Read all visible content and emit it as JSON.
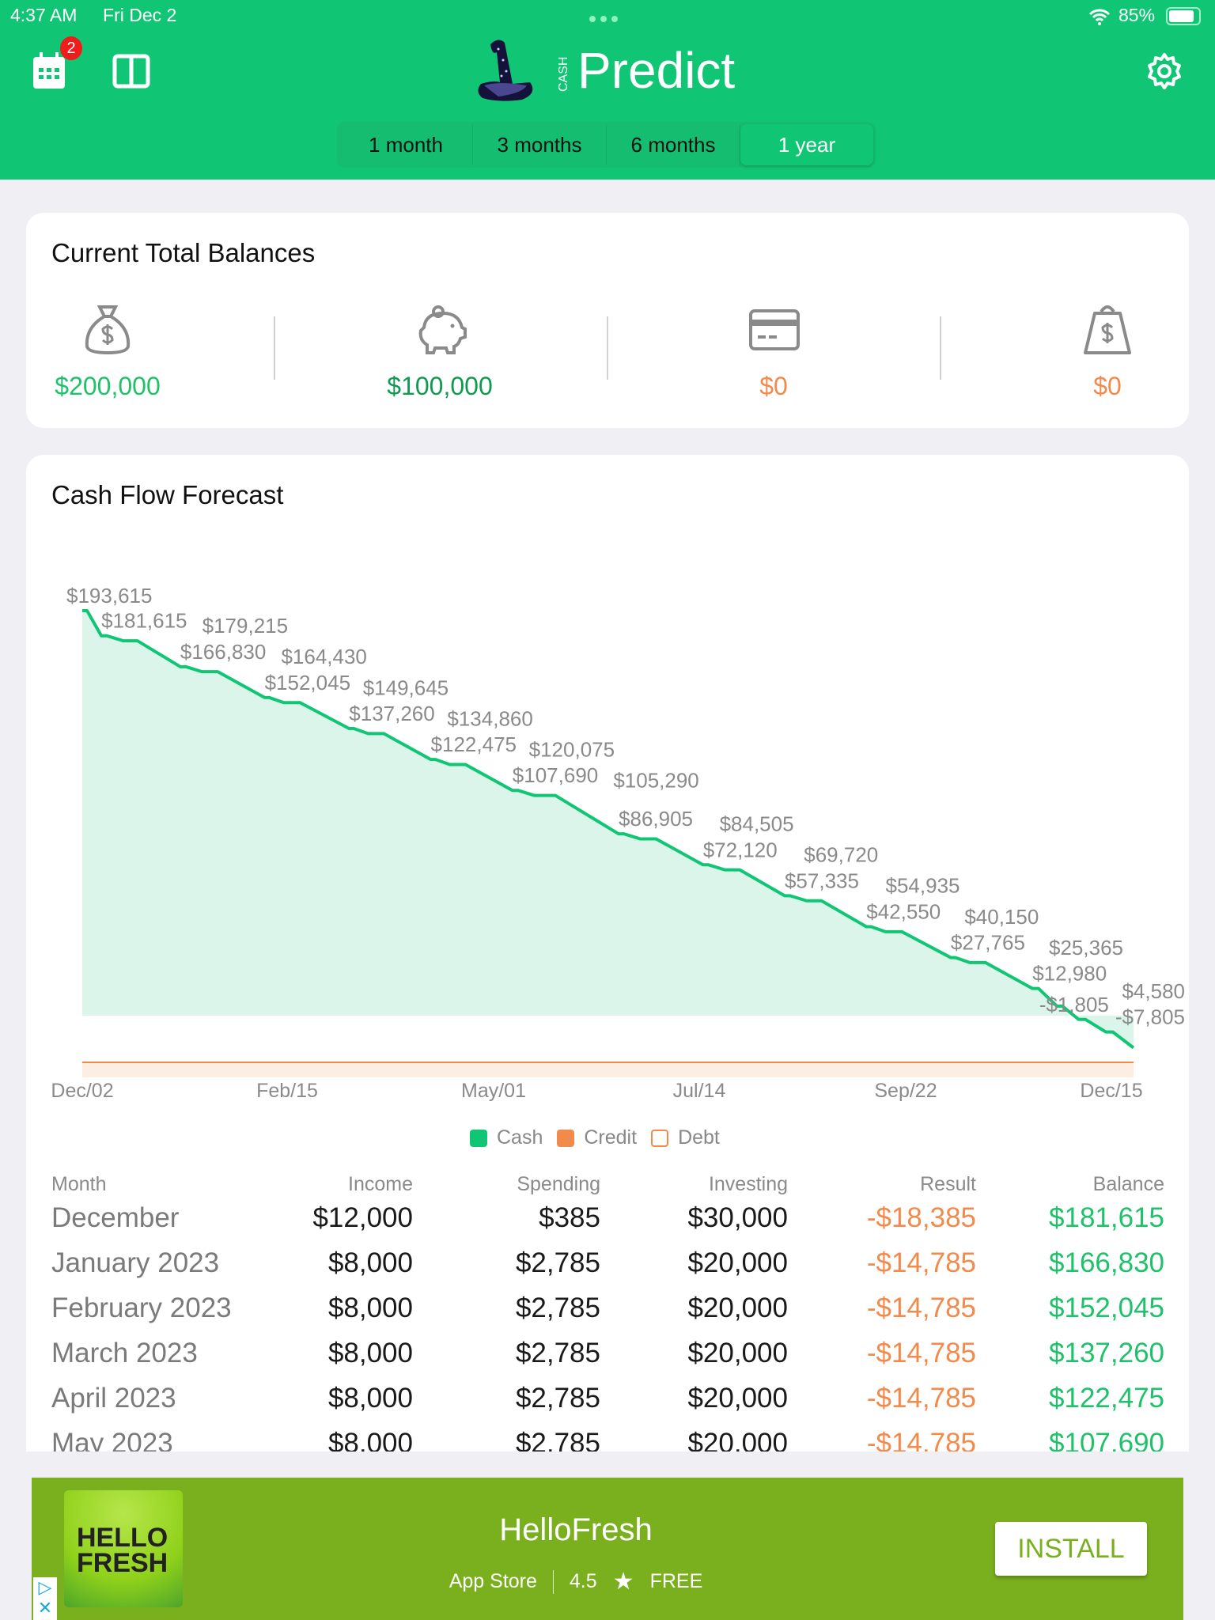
{
  "status_bar": {
    "time": "4:37 AM",
    "date": "Fri Dec 2",
    "battery": "85%"
  },
  "header": {
    "calendar_badge": "2",
    "logo_small": "CASH",
    "logo_main": "Predict",
    "segments": [
      {
        "label": "1 month",
        "active": false
      },
      {
        "label": "3 months",
        "active": false
      },
      {
        "label": "6 months",
        "active": false
      },
      {
        "label": "1 year",
        "active": true
      }
    ]
  },
  "balances": {
    "title": "Current Total Balances",
    "items": [
      {
        "icon": "money-bag-icon",
        "value": "$200,000",
        "color": "#1fc16b"
      },
      {
        "icon": "piggy-bank-icon",
        "value": "$100,000",
        "color": "#0e9a50"
      },
      {
        "icon": "credit-card-icon",
        "value": "$0",
        "color": "#f28a4c"
      },
      {
        "icon": "debt-bag-icon",
        "value": "$0",
        "color": "#f28a4c"
      }
    ]
  },
  "forecast": {
    "title": "Cash Flow Forecast",
    "legend": [
      {
        "label": "Cash",
        "color": "#10c674",
        "filled": true
      },
      {
        "label": "Credit",
        "color": "#f28a4c",
        "filled": true
      },
      {
        "label": "Debt",
        "color": "#f28a4c",
        "filled": false
      }
    ],
    "table": {
      "headers": [
        "Month",
        "Income",
        "Spending",
        "Investing",
        "Result",
        "Balance"
      ],
      "rows": [
        [
          "December",
          "$12,000",
          "$385",
          "$30,000",
          "-$18,385",
          "$181,615"
        ],
        [
          "January 2023",
          "$8,000",
          "$2,785",
          "$20,000",
          "-$14,785",
          "$166,830"
        ],
        [
          "February 2023",
          "$8,000",
          "$2,785",
          "$20,000",
          "-$14,785",
          "$152,045"
        ],
        [
          "March 2023",
          "$8,000",
          "$2,785",
          "$20,000",
          "-$14,785",
          "$137,260"
        ],
        [
          "April 2023",
          "$8,000",
          "$2,785",
          "$20,000",
          "-$14,785",
          "$122,475"
        ],
        [
          "May 2023",
          "$8,000",
          "$2,785",
          "$20,000",
          "-$14,785",
          "$107,690"
        ]
      ]
    }
  },
  "chart_data": {
    "type": "area",
    "title": "Cash Flow Forecast",
    "xlabel": "",
    "ylabel": "",
    "x_ticks": [
      "Dec/02",
      "Feb/15",
      "May/01",
      "Jul/14",
      "Sep/22",
      "Dec/15"
    ],
    "x_range_days": [
      0,
      378
    ],
    "ylim": [
      -10000,
      200000
    ],
    "series": [
      {
        "name": "Cash",
        "color": "#10c674",
        "days": [
          0,
          7,
          15,
          36,
          44,
          67,
          74,
          98,
          105,
          128,
          135,
          158,
          166,
          197,
          205,
          228,
          236,
          258,
          266,
          288,
          295,
          319,
          326,
          349,
          358,
          366,
          376
        ],
        "values": [
          193615,
          181615,
          179215,
          166830,
          164430,
          152045,
          149645,
          137260,
          134860,
          122475,
          120075,
          107690,
          105290,
          86905,
          84505,
          72120,
          69720,
          57335,
          54935,
          42550,
          40150,
          27765,
          25365,
          12980,
          4580,
          -1805,
          -7805
        ],
        "labels": [
          "$193,615",
          "$181,615",
          "$179,215",
          "$166,830",
          "$164,430",
          "$152,045",
          "$149,645",
          "$137,260",
          "$134,860",
          "$122,475",
          "$120,075",
          "$107,690",
          "$105,290",
          "$86,905",
          "$84,505",
          "$72,120",
          "$69,720",
          "$57,335",
          "$54,935",
          "$42,550",
          "$40,150",
          "$27,765",
          "$25,365",
          "$12,980",
          "$4,580",
          "-$1,805",
          "-$7,805"
        ]
      },
      {
        "name": "Credit",
        "color": "#f28a4c",
        "values_constant": 0
      }
    ]
  },
  "ad": {
    "title": "HelloFresh",
    "store": "App Store",
    "rating": "4.5",
    "price": "FREE",
    "button": "INSTALL",
    "logo_text": "HELLO FRESH"
  }
}
